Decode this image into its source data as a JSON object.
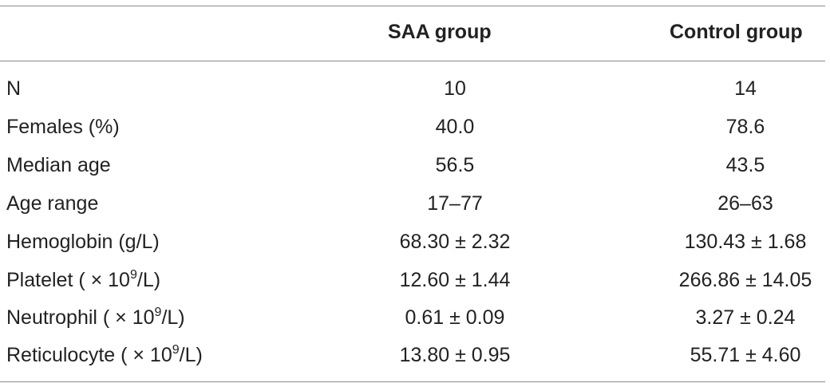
{
  "table": {
    "columns": [
      "",
      "SAA group",
      "Control group"
    ],
    "rows": [
      {
        "label": "N",
        "label_sup": "",
        "label_tail": "",
        "saa": "10",
        "control": "14"
      },
      {
        "label": "Females (%)",
        "label_sup": "",
        "label_tail": "",
        "saa": "40.0",
        "control": "78.6"
      },
      {
        "label": "Median age",
        "label_sup": "",
        "label_tail": "",
        "saa": "56.5",
        "control": "43.5"
      },
      {
        "label": "Age range",
        "label_sup": "",
        "label_tail": "",
        "saa": "17–77",
        "control": "26–63"
      },
      {
        "label": "Hemoglobin (g/L)",
        "label_sup": "",
        "label_tail": "",
        "saa": "68.30 ± 2.32",
        "control": "130.43 ± 1.68"
      },
      {
        "label": "Platelet ( × 10",
        "label_sup": "9",
        "label_tail": "/L)",
        "saa": "12.60 ± 1.44",
        "control": "266.86 ± 14.05"
      },
      {
        "label": "Neutrophil ( × 10",
        "label_sup": "9",
        "label_tail": "/L)",
        "saa": "0.61 ± 0.09",
        "control": "3.27 ± 0.24"
      },
      {
        "label": "Reticulocyte ( × 10",
        "label_sup": "9",
        "label_tail": "/L)",
        "saa": "13.80 ± 0.95",
        "control": "55.71 ± 4.60"
      }
    ]
  }
}
